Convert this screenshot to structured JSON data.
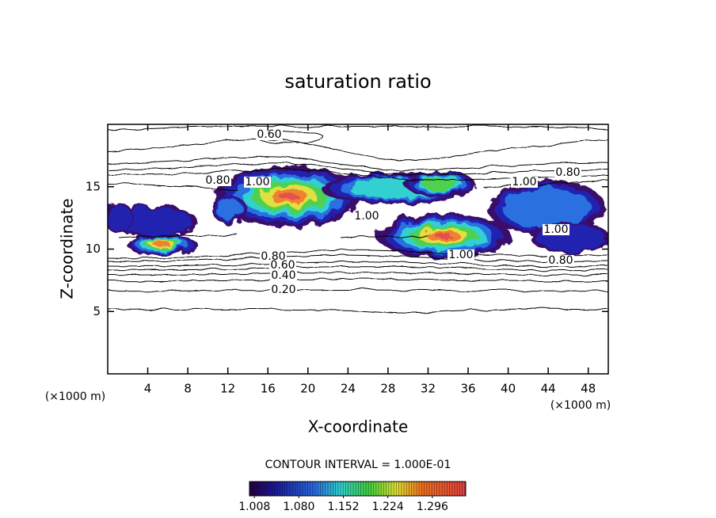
{
  "chart_data": {
    "type": "contour",
    "title": "saturation ratio",
    "x_label": "X-coordinate",
    "y_label": "Z-coordinate",
    "y_unit": "(×1000 m)",
    "x_unit": "(×1000 m)",
    "xlim": [
      0,
      50
    ],
    "xticks": [
      4,
      8,
      12,
      16,
      20,
      24,
      28,
      32,
      36,
      40,
      44,
      48
    ],
    "ylim": [
      0,
      20
    ],
    "yticks": [
      5,
      10,
      15
    ],
    "contour_interval": "CONTOUR INTERVAL = 1.000E-01",
    "contour_labels": [
      {
        "value": 0.6,
        "label": "0.60"
      },
      {
        "value": 0.8,
        "label": "0.80"
      },
      {
        "value": 1.0,
        "label": "1.00"
      },
      {
        "value": 0.8,
        "label": "0.80"
      },
      {
        "value": 1.0,
        "label": "1.00"
      },
      {
        "value": 1.0,
        "label": "1.00"
      },
      {
        "value": 1.0,
        "label": "1.00"
      },
      {
        "value": 1.0,
        "label": "1.00"
      },
      {
        "value": 0.8,
        "label": "0.80"
      },
      {
        "value": 0.8,
        "label": "0.80"
      },
      {
        "value": 0.6,
        "label": "0.60"
      },
      {
        "value": 0.4,
        "label": "0.40"
      },
      {
        "value": 0.2,
        "label": "0.20"
      }
    ],
    "colorbar": {
      "lim": [
        1.0,
        1.35
      ],
      "ticks": [
        {
          "value": 1.008,
          "label": "1.008"
        },
        {
          "value": 1.08,
          "label": "1.080"
        },
        {
          "value": 1.152,
          "label": "1.152"
        },
        {
          "value": 1.224,
          "label": "1.224"
        },
        {
          "value": 1.296,
          "label": "1.296"
        }
      ]
    }
  }
}
